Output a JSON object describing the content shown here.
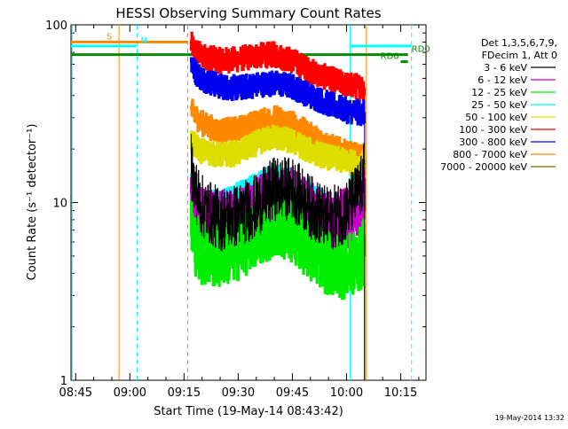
{
  "chart_data": {
    "type": "line",
    "title": "HESSI Observing Summary Count Rates",
    "xlabel": "Start Time (19-May-14 08:43:42)",
    "ylabel": "Count Rate (s⁻¹ detector⁻¹)",
    "x_scale": "time",
    "y_scale": "log",
    "xlim": [
      "08:43:42",
      "10:22:00"
    ],
    "ylim": [
      1,
      100
    ],
    "x_ticks": [
      "08:45",
      "09:00",
      "09:15",
      "09:30",
      "09:45",
      "10:00",
      "10:15"
    ],
    "y_ticks": [
      "1",
      "10",
      "100"
    ],
    "legend_header": [
      "Det 1,3,5,6,7,9,",
      "FDecim 1, Att 0"
    ],
    "legend_position": "right",
    "footer_date": "19-May-2014 13:32",
    "series": [
      {
        "name": "3 - 6 keV",
        "color": "#000000",
        "x": [
          "09:17",
          "09:18",
          "09:20",
          "09:25",
          "09:30",
          "09:35",
          "09:40",
          "09:45",
          "09:50",
          "09:55",
          "10:00",
          "10:04",
          "10:05"
        ],
        "y": [
          17.0,
          12.0,
          9.5,
          8.0,
          8.5,
          9.5,
          12.0,
          12.0,
          9.5,
          8.0,
          9.0,
          12.0,
          15.0
        ]
      },
      {
        "name": "6 - 12 keV",
        "color": "#cc00cc",
        "x": [
          "09:17",
          "09:18",
          "09:20",
          "09:25",
          "09:30",
          "09:35",
          "09:40",
          "09:45",
          "09:50",
          "09:55",
          "10:00",
          "10:04",
          "10:05"
        ],
        "y": [
          11.0,
          9.0,
          8.0,
          7.8,
          8.0,
          9.0,
          10.5,
          10.5,
          8.5,
          7.5,
          8.0,
          9.5,
          13.0
        ]
      },
      {
        "name": "12 - 25 keV",
        "color": "#00ee00",
        "x": [
          "09:17",
          "09:18",
          "09:20",
          "09:25",
          "09:30",
          "09:35",
          "09:40",
          "09:45",
          "09:50",
          "09:55",
          "10:00",
          "10:04",
          "10:05"
        ],
        "y": [
          7.0,
          6.0,
          5.2,
          5.0,
          5.5,
          6.5,
          7.5,
          7.0,
          5.5,
          4.5,
          4.3,
          4.8,
          5.5
        ]
      },
      {
        "name": "25 - 50 keV",
        "color": "#00ffff",
        "x": [
          "09:17",
          "09:18",
          "09:20",
          "09:25",
          "09:30",
          "09:35",
          "09:40",
          "09:45",
          "09:50",
          "09:55",
          "10:00",
          "10:04",
          "10:05"
        ],
        "y": [
          13.0,
          11.0,
          10.0,
          10.0,
          11.0,
          12.5,
          14.0,
          13.0,
          11.0,
          9.5,
          9.0,
          8.8,
          9.0
        ]
      },
      {
        "name": "50 - 100 keV",
        "color": "#dddd00",
        "x": [
          "09:17",
          "09:18",
          "09:20",
          "09:25",
          "09:30",
          "09:35",
          "09:40",
          "09:45",
          "09:50",
          "09:55",
          "10:00",
          "10:04",
          "10:05"
        ],
        "y": [
          22.0,
          21.0,
          19.5,
          18.5,
          19.0,
          21.5,
          23.5,
          22.0,
          19.5,
          18.0,
          17.0,
          16.5,
          16.5
        ]
      },
      {
        "name": "100 - 300 keV",
        "color": "#ff0000",
        "x": [
          "09:17",
          "09:18",
          "09:20",
          "09:25",
          "09:30",
          "09:35",
          "09:40",
          "09:45",
          "09:50",
          "09:55",
          "10:00",
          "10:04",
          "10:05"
        ],
        "y": [
          78.0,
          72.0,
          67.0,
          63.0,
          64.0,
          67.0,
          68.0,
          63.0,
          55.0,
          50.0,
          46.0,
          45.0,
          44.0
        ]
      },
      {
        "name": "300 - 800 keV",
        "color": "#0000ee",
        "x": [
          "09:17",
          "09:18",
          "09:20",
          "09:25",
          "09:30",
          "09:35",
          "09:40",
          "09:45",
          "09:50",
          "09:55",
          "10:00",
          "10:04",
          "10:05"
        ],
        "y": [
          62.0,
          55.0,
          50.0,
          45.0,
          44.0,
          46.0,
          47.0,
          45.0,
          40.0,
          36.0,
          33.0,
          32.0,
          32.0
        ]
      },
      {
        "name": "800 - 7000 keV",
        "color": "#ff8800",
        "x": [
          "09:17",
          "09:18",
          "09:20",
          "09:25",
          "09:30",
          "09:35",
          "09:40",
          "09:45",
          "09:50",
          "09:55",
          "10:00",
          "10:04",
          "10:05"
        ],
        "y": [
          33.0,
          31.0,
          28.0,
          25.0,
          26.0,
          28.0,
          30.0,
          28.0,
          24.0,
          21.0,
          19.0,
          18.0,
          18.0
        ]
      },
      {
        "name": "7000 - 20000 keV",
        "color": "#886600",
        "x": [],
        "y": []
      }
    ],
    "flags": [
      {
        "label": "S",
        "color": "#ff8800",
        "x_start": "08:43:42",
        "x_end": "09:16:00",
        "y": 80.0,
        "label_at": "start"
      },
      {
        "label": "N",
        "color": "#00ffff",
        "x_start": "08:43:42",
        "x_end": "09:02:00",
        "y": 76.0,
        "label_at": "end"
      },
      {
        "label": "",
        "color": "#00ffff",
        "x_start": "10:01:00",
        "x_end": "10:18:00",
        "y": 76.0,
        "label_at": "none"
      },
      {
        "label": "RD0",
        "color": "#008800",
        "x_start": "08:43:42",
        "x_end": "10:17:00",
        "y": 68.0,
        "label_at": "end"
      },
      {
        "label": "RD6",
        "color": "#008800",
        "x_start": "10:15:00",
        "x_end": "10:17:00",
        "y": 62.0,
        "label_at": "before"
      }
    ],
    "vlines": [
      {
        "x": "08:44:00",
        "color": "#00ffff",
        "dash": false
      },
      {
        "x": "08:57:00",
        "color": "#ff8800",
        "dash": false
      },
      {
        "x": "09:02:00",
        "color": "#00ffff",
        "dash": true
      },
      {
        "x": "09:16:00",
        "color": "#ff8800",
        "dash": true
      },
      {
        "x": "10:01:00",
        "color": "#00ffff",
        "dash": false
      },
      {
        "x": "10:05:30",
        "color": "#ff8800",
        "dash": false
      },
      {
        "x": "10:18:00",
        "color": "#00ffff",
        "dash": true
      }
    ]
  }
}
